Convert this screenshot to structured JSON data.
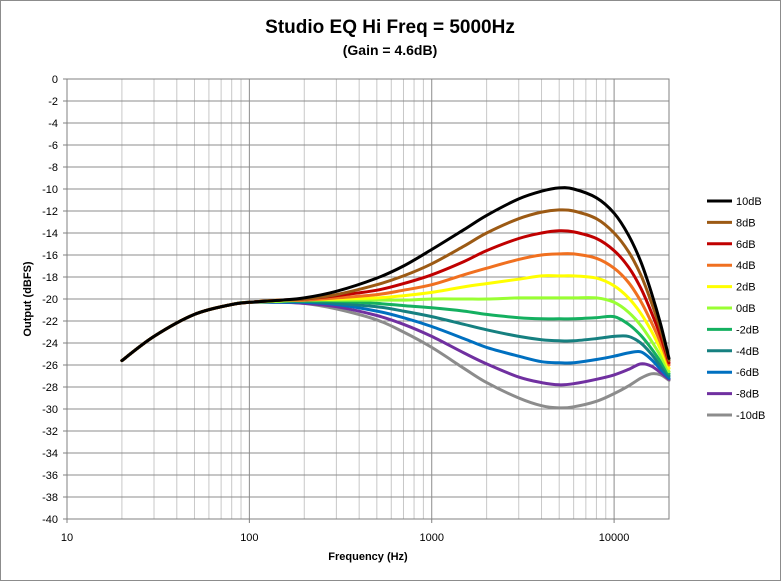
{
  "chart_data": {
    "type": "line",
    "title": "Studio EQ Hi Freq = 5000Hz",
    "subtitle": "(Gain = 4.6dB)",
    "xlabel": "Frequency (Hz)",
    "ylabel": "Output (dBFS)",
    "x_scale": "log",
    "xlim": [
      10,
      20000
    ],
    "ylim": [
      -40,
      0
    ],
    "x_ticks": [
      10,
      100,
      1000,
      10000
    ],
    "x_tick_labels": [
      "10",
      "100",
      "1000",
      "10000"
    ],
    "y_ticks": [
      0,
      -2,
      -4,
      -6,
      -8,
      -10,
      -12,
      -14,
      -16,
      -18,
      -20,
      -22,
      -24,
      -26,
      -28,
      -30,
      -32,
      -34,
      -36,
      -38,
      -40
    ],
    "y_tick_labels": [
      "0",
      "-2",
      "-4",
      "-6",
      "-8",
      "-10",
      "-12",
      "-14",
      "-16",
      "-18",
      "-20",
      "-22",
      "-24",
      "-26",
      "-28",
      "-30",
      "-32",
      "-34",
      "-36",
      "-38",
      "-40"
    ],
    "grid": true,
    "legend_position": "right",
    "x": [
      20,
      30,
      50,
      80,
      100,
      150,
      200,
      300,
      500,
      700,
      1000,
      1500,
      2000,
      3000,
      4000,
      5000,
      6000,
      8000,
      10000,
      12000,
      14000,
      16000,
      18000,
      20000
    ],
    "series": [
      {
        "name": "10dB",
        "color": "#000000",
        "values": [
          -25.6,
          -23.4,
          -21.4,
          -20.5,
          -20.3,
          -20.1,
          -19.9,
          -19.3,
          -18.1,
          -17.0,
          -15.5,
          -13.7,
          -12.4,
          -10.9,
          -10.2,
          -9.9,
          -10.0,
          -10.8,
          -12.2,
          -14.2,
          -16.6,
          -19.4,
          -22.3,
          -25.4
        ]
      },
      {
        "name": "8dB",
        "color": "#9c5a14",
        "values": [
          -25.6,
          -23.4,
          -21.4,
          -20.5,
          -20.3,
          -20.1,
          -20.0,
          -19.6,
          -18.7,
          -17.9,
          -16.8,
          -15.2,
          -14.0,
          -12.7,
          -12.1,
          -11.9,
          -12.0,
          -12.7,
          -14.0,
          -15.7,
          -17.8,
          -20.3,
          -22.8,
          -25.6
        ]
      },
      {
        "name": "6dB",
        "color": "#c00000",
        "values": [
          -25.6,
          -23.4,
          -21.4,
          -20.5,
          -20.3,
          -20.1,
          -20.0,
          -19.7,
          -19.2,
          -18.6,
          -17.8,
          -16.6,
          -15.6,
          -14.5,
          -14.0,
          -13.8,
          -13.9,
          -14.5,
          -15.6,
          -17.1,
          -19.0,
          -21.2,
          -23.4,
          -25.8
        ]
      },
      {
        "name": "4dB",
        "color": "#f07020",
        "values": [
          -25.6,
          -23.4,
          -21.4,
          -20.5,
          -20.3,
          -20.1,
          -20.1,
          -19.9,
          -19.6,
          -19.2,
          -18.7,
          -17.8,
          -17.2,
          -16.4,
          -16.0,
          -15.9,
          -15.9,
          -16.3,
          -17.2,
          -18.5,
          -20.2,
          -22.1,
          -24.0,
          -26.0
        ]
      },
      {
        "name": "2dB",
        "color": "#ffff00",
        "values": [
          -25.6,
          -23.4,
          -21.4,
          -20.5,
          -20.3,
          -20.1,
          -20.1,
          -20.0,
          -19.9,
          -19.7,
          -19.4,
          -18.9,
          -18.6,
          -18.2,
          -17.9,
          -17.9,
          -17.9,
          -18.1,
          -18.8,
          -19.9,
          -21.3,
          -22.9,
          -24.6,
          -26.3
        ]
      },
      {
        "name": "0dB",
        "color": "#99ff33",
        "values": [
          -25.6,
          -23.4,
          -21.4,
          -20.5,
          -20.3,
          -20.2,
          -20.1,
          -20.1,
          -20.1,
          -20.1,
          -20.0,
          -20.0,
          -20.0,
          -19.9,
          -19.9,
          -19.9,
          -19.9,
          -19.9,
          -20.3,
          -21.2,
          -22.4,
          -23.8,
          -25.2,
          -26.6
        ]
      },
      {
        "name": "-2dB",
        "color": "#14b060",
        "values": [
          -25.6,
          -23.4,
          -21.4,
          -20.5,
          -20.3,
          -20.2,
          -20.2,
          -20.2,
          -20.4,
          -20.6,
          -20.8,
          -21.1,
          -21.4,
          -21.7,
          -21.8,
          -21.8,
          -21.8,
          -21.7,
          -21.6,
          -22.3,
          -23.3,
          -24.5,
          -25.7,
          -26.8
        ]
      },
      {
        "name": "-4dB",
        "color": "#168080",
        "values": [
          -25.6,
          -23.4,
          -21.4,
          -20.5,
          -20.3,
          -20.2,
          -20.2,
          -20.4,
          -20.7,
          -21.1,
          -21.6,
          -22.3,
          -22.8,
          -23.4,
          -23.7,
          -23.8,
          -23.8,
          -23.6,
          -23.4,
          -23.4,
          -24.0,
          -25.0,
          -26.1,
          -27.0
        ]
      },
      {
        "name": "-6dB",
        "color": "#0070c0",
        "values": [
          -25.6,
          -23.4,
          -21.4,
          -20.5,
          -20.3,
          -20.3,
          -20.3,
          -20.5,
          -21.1,
          -21.7,
          -22.5,
          -23.6,
          -24.4,
          -25.2,
          -25.7,
          -25.8,
          -25.8,
          -25.5,
          -25.2,
          -24.9,
          -24.8,
          -25.5,
          -26.4,
          -27.2
        ]
      },
      {
        "name": "-8dB",
        "color": "#7030a0",
        "values": [
          -25.6,
          -23.4,
          -21.4,
          -20.5,
          -20.3,
          -20.3,
          -20.4,
          -20.7,
          -21.5,
          -22.3,
          -23.4,
          -24.9,
          -25.9,
          -27.1,
          -27.6,
          -27.8,
          -27.7,
          -27.3,
          -26.9,
          -26.4,
          -25.9,
          -26.1,
          -26.7,
          -27.3
        ]
      },
      {
        "name": "-10dB",
        "color": "#8c8c8c",
        "values": [
          -25.6,
          -23.4,
          -21.4,
          -20.5,
          -20.3,
          -20.3,
          -20.4,
          -20.9,
          -21.9,
          -23.0,
          -24.4,
          -26.3,
          -27.6,
          -29.0,
          -29.7,
          -29.9,
          -29.8,
          -29.3,
          -28.6,
          -27.9,
          -27.2,
          -26.8,
          -26.9,
          -27.4
        ]
      }
    ]
  }
}
